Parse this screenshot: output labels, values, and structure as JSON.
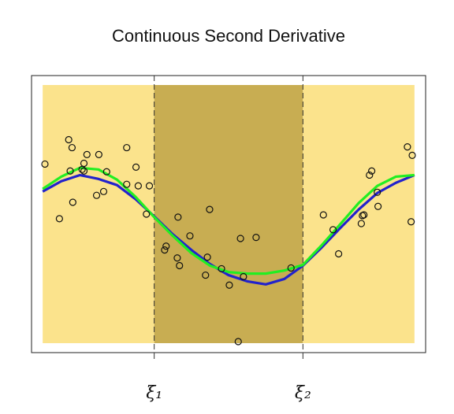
{
  "chart_data": {
    "type": "scatter",
    "title": "Continuous Second Derivative",
    "xlim": [
      -0.3,
      10.3
    ],
    "ylim": [
      -0.4,
      10.4
    ],
    "regions": [
      {
        "from": 0,
        "to": 3,
        "color": "#fbe38c"
      },
      {
        "from": 3,
        "to": 7,
        "color": "#c8ad52"
      },
      {
        "from": 7,
        "to": 10,
        "color": "#fbe38c"
      }
    ],
    "knots": [
      {
        "value": 3,
        "label": "ξ₁"
      },
      {
        "value": 7,
        "label": "ξ₂"
      }
    ],
    "points": {
      "color": "#111111",
      "x": [
        0.06,
        0.45,
        0.7,
        0.79,
        0.81,
        0.74,
        1.06,
        1.11,
        1.19,
        1.11,
        1.51,
        1.45,
        1.64,
        1.72,
        2.26,
        2.26,
        2.51,
        2.57,
        2.87,
        2.79,
        3.28,
        3.32,
        3.64,
        3.62,
        3.68,
        3.96,
        4.43,
        4.49,
        4.38,
        4.81,
        5.02,
        5.32,
        5.4,
        5.74,
        5.26,
        6.68,
        7.55,
        7.81,
        7.96,
        8.57,
        8.6,
        8.64,
        8.79,
        8.85,
        9.0,
        9.02,
        9.81,
        9.94,
        9.91
      ],
      "y": [
        6.95,
        4.82,
        7.9,
        7.59,
        5.46,
        6.68,
        6.74,
        6.98,
        7.32,
        6.68,
        7.32,
        5.73,
        5.88,
        6.65,
        7.59,
        6.16,
        6.83,
        6.1,
        6.1,
        5.0,
        3.6,
        3.75,
        4.88,
        3.29,
        2.99,
        4.15,
        3.32,
        5.18,
        2.62,
        2.87,
        2.23,
        4.05,
        2.56,
        4.09,
        0.03,
        2.9,
        4.97,
        4.39,
        3.45,
        4.63,
        4.94,
        4.97,
        6.52,
        6.68,
        5.85,
        5.3,
        7.62,
        7.29,
        4.7
      ]
    },
    "curve_x": [
      0,
      0.5,
      1,
      1.5,
      2,
      2.5,
      3,
      3.5,
      4,
      4.5,
      5,
      5.5,
      6,
      6.5,
      7,
      7.5,
      8,
      8.5,
      9,
      9.5,
      10
    ],
    "curves": [
      {
        "color": "#2222cc",
        "values": [
          5.88,
          6.28,
          6.52,
          6.37,
          6.13,
          5.58,
          4.91,
          4.21,
          3.6,
          3.05,
          2.62,
          2.38,
          2.26,
          2.47,
          2.99,
          3.69,
          4.45,
          5.18,
          5.82,
          6.22,
          6.52
        ]
      },
      {
        "color": "#22ee22",
        "values": [
          5.98,
          6.46,
          6.8,
          6.74,
          6.34,
          5.67,
          4.88,
          4.15,
          3.48,
          2.99,
          2.74,
          2.68,
          2.68,
          2.8,
          3.02,
          3.78,
          4.6,
          5.43,
          6.1,
          6.46,
          6.52
        ]
      }
    ]
  }
}
